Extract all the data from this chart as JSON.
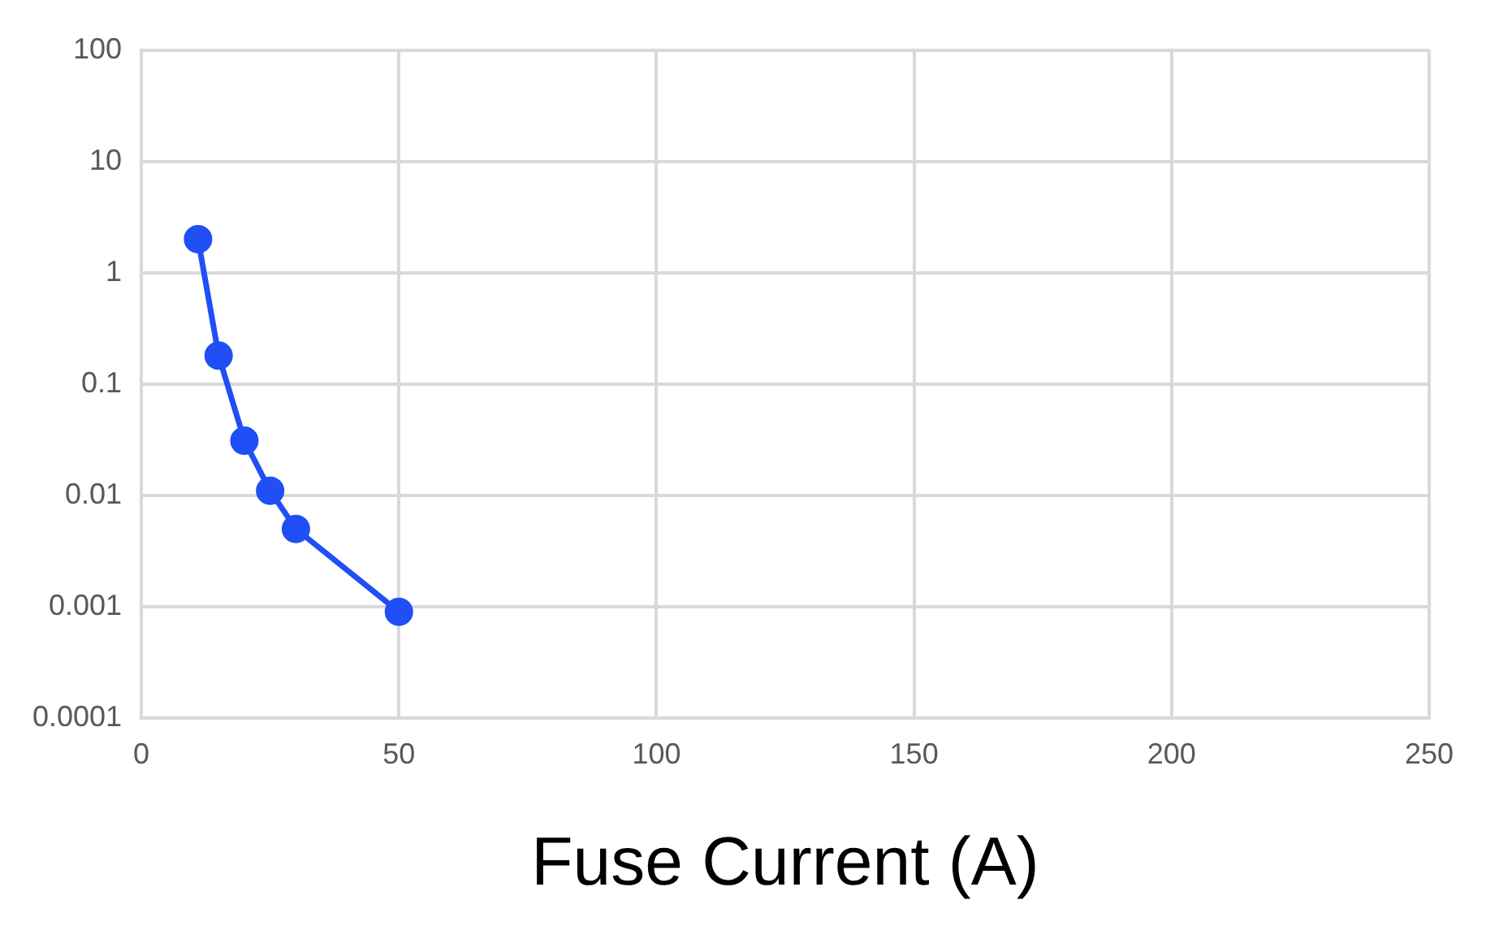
{
  "chart_data": {
    "type": "line",
    "xlabel": "Fuse Current (A)",
    "x": [
      11,
      15,
      20,
      25,
      30,
      50
    ],
    "series": [
      {
        "color": "#1f4ff5",
        "values": [
          2,
          0.18,
          0.031,
          0.011,
          0.005,
          0.0009
        ]
      }
    ],
    "xlim": [
      0,
      250
    ],
    "xticks": [
      0,
      50,
      100,
      150,
      200,
      250
    ],
    "ylim": [
      0.0001,
      100
    ],
    "yticks": [
      0.0001,
      0.001,
      0.01,
      0.1,
      1,
      10,
      100
    ],
    "log": "y",
    "grid": true,
    "marker": "circle",
    "line_style": "solid",
    "legend": false
  }
}
